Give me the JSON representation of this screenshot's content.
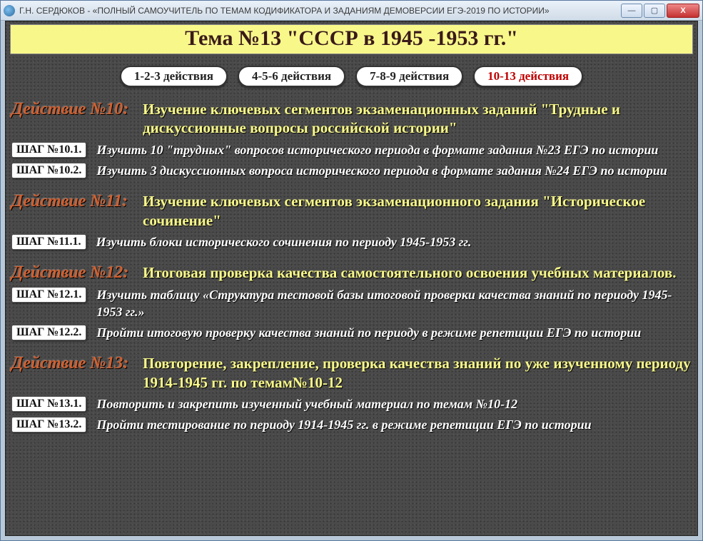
{
  "window": {
    "title": "Г.Н. СЕРДЮКОВ - «ПОЛНЫЙ САМОУЧИТЕЛЬ ПО ТЕМАМ КОДИФИКАТОРА И ЗАДАНИЯМ ДЕМОВЕРСИИ ЕГЭ-2019 ПО ИСТОРИИ»",
    "min_label": "—",
    "max_label": "▢",
    "close_label": "X"
  },
  "header": {
    "title": "Тема №13 \"СССР в 1945 -1953 гг.\""
  },
  "tabs": [
    {
      "label": "1-2-3 действия",
      "active": false
    },
    {
      "label": "4-5-6 действия",
      "active": false
    },
    {
      "label": "7-8-9 действия",
      "active": false
    },
    {
      "label": "10-13 действия",
      "active": true
    }
  ],
  "actions": [
    {
      "num": "Действие №10:",
      "title": "Изучение ключевых сегментов экзаменационных заданий \"Трудные и дискуссионные вопросы российской истории\"",
      "steps": [
        {
          "btn": "ШАГ №10.1.",
          "text": "Изучить 10 \"трудных\" вопросов исторического периода в формате задания №23 ЕГЭ по истории"
        },
        {
          "btn": "ШАГ №10.2.",
          "text": "Изучить 3 дискуссионных вопроса исторического периода в формате задания №24 ЕГЭ по истории"
        }
      ]
    },
    {
      "num": "Действие №11:",
      "title": "Изучение ключевых сегментов экзаменационного задания \"Историческое сочинение\"",
      "steps": [
        {
          "btn": "ШАГ №11.1.",
          "text": "Изучить блоки исторического сочинения по периоду  1945-1953 гг."
        }
      ]
    },
    {
      "num": "Действие №12:",
      "title": "Итоговая проверка качества самостоятельного освоения учебных материалов.",
      "steps": [
        {
          "btn": "ШАГ №12.1.",
          "text": "Изучить таблицу «Структура тестовой базы итоговой проверки качества знаний по периоду 1945-1953 гг.»"
        },
        {
          "btn": "ШАГ №12.2.",
          "text": "Пройти итоговую проверку качества знаний по периоду в режиме репетиции ЕГЭ по истории"
        }
      ]
    },
    {
      "num": "Действие №13:",
      "title": "Повторение, закрепление, проверка качества знаний по  уже изученному периоду 1914-1945 гг. по темам№10-12",
      "steps": [
        {
          "btn": "ШАГ №13.1.",
          "text": "Повторить и закрепить изученный учебный материал по темам №10-12"
        },
        {
          "btn": "ШАГ №13.2.",
          "text": "Пройти тестирование по периоду 1914-1945 гг. в режиме репетиции ЕГЭ по истории"
        }
      ]
    }
  ],
  "styling": {
    "header_bg": "#f8f88a",
    "header_text_color": "#3a1a1a",
    "action_num_color": "#d06030",
    "action_title_color": "#f8f88a",
    "step_text_color": "#ffffff",
    "tab_active_color": "#c00000",
    "client_bg": "#4a4a4a"
  }
}
